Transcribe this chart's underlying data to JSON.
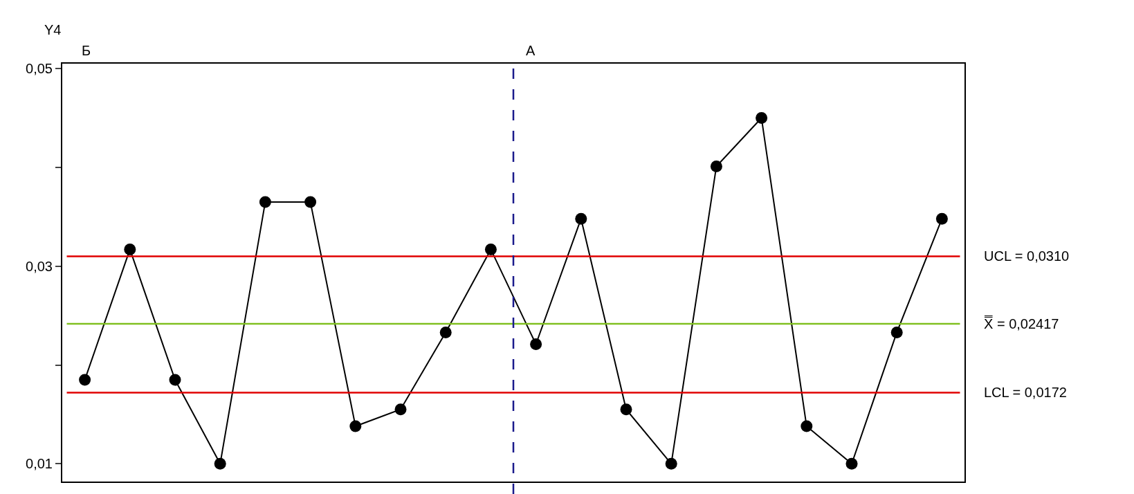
{
  "chart_data": {
    "type": "line",
    "ylabel": "Y4",
    "categories": [
      null,
      null,
      null,
      null,
      null,
      null,
      null,
      null,
      null,
      null,
      null,
      null,
      null,
      null,
      null,
      null,
      null,
      null,
      null,
      null
    ],
    "series": [
      {
        "color": "#000000",
        "values": [
          0.0185,
          0.0317,
          0.0185,
          0.01,
          0.0365,
          0.0365,
          0.0138,
          0.0155,
          0.0233,
          0.0317,
          0.0221,
          0.0348,
          0.0155,
          0.01,
          0.0401,
          0.045,
          0.0138,
          0.01,
          0.0233,
          0.0348
        ]
      }
    ],
    "ylim": [
      0.0082,
      0.0505
    ],
    "yticks": [
      {
        "value": 0.01,
        "label": "0,01"
      },
      {
        "value": 0.02,
        "label": null
      },
      {
        "value": 0.03,
        "label": "0,03"
      },
      {
        "value": 0.04,
        "label": null
      },
      {
        "value": 0.05,
        "label": "0,05"
      }
    ],
    "ref_lines": [
      {
        "axis": "y",
        "value": 0.031,
        "label": "UCL = 0,0310",
        "color": "#e00000"
      },
      {
        "axis": "y",
        "value": 0.02417,
        "label": "X̿ = 0,02417",
        "color": "#80c020"
      },
      {
        "axis": "y",
        "value": 0.0172,
        "label": "LCL = 0,0172",
        "color": "#e00000"
      },
      {
        "axis": "x",
        "color": "#1a1a8c",
        "line_style": "dashed"
      }
    ],
    "annotations": [
      "Б",
      "А"
    ],
    "tick_labels": "y",
    "marker": "circle",
    "line_style": "solid"
  }
}
